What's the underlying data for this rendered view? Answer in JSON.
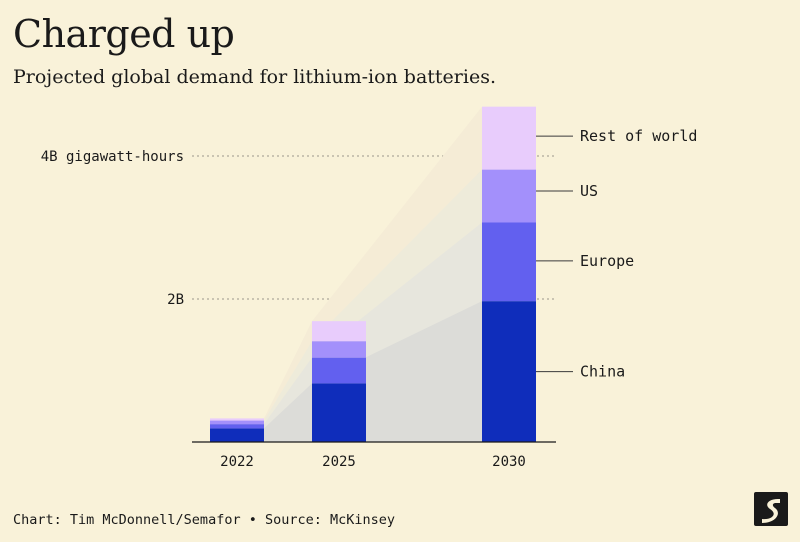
{
  "title": "Charged up",
  "subtitle": "Projected global demand for lithium-ion batteries.",
  "footer": "Chart: Tim McDonnell/Semafor • Source: McKinsey",
  "colors": {
    "background": "#f9f2d9",
    "China": "#0f2dbb",
    "Europe": "#6260ef",
    "US": "#a390fb",
    "Rest of world": "#e8ccfc"
  },
  "chart_data": {
    "type": "bar",
    "stacked": true,
    "categories": [
      "2022",
      "2025",
      "2030"
    ],
    "series": [
      {
        "name": "China",
        "values": [
          0.19,
          0.82,
          1.97
        ]
      },
      {
        "name": "Europe",
        "values": [
          0.06,
          0.36,
          1.1
        ]
      },
      {
        "name": "US",
        "values": [
          0.05,
          0.23,
          0.74
        ]
      },
      {
        "name": "Rest of world",
        "values": [
          0.03,
          0.28,
          0.88
        ]
      }
    ],
    "ytick_labels": [
      {
        "value": 2,
        "label": "2B"
      },
      {
        "value": 4,
        "label": "4B gigawatt-hours"
      }
    ],
    "ylim": [
      0,
      4.7
    ],
    "legend": "series labels at right of 2030 bar",
    "grid": "dotted lines at tick values"
  }
}
